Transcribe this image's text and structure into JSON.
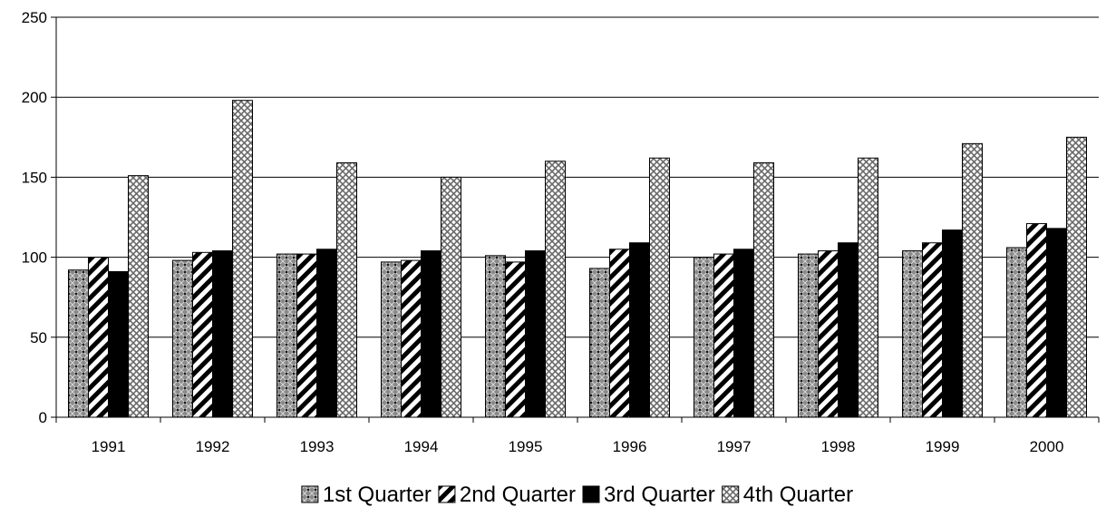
{
  "chart_data": {
    "type": "bar",
    "categories": [
      "1991",
      "1992",
      "1993",
      "1994",
      "1995",
      "1996",
      "1997",
      "1998",
      "1999",
      "2000"
    ],
    "series": [
      {
        "name": "1st Quarter",
        "pattern": "dotted-crosshatch",
        "values": [
          92,
          98,
          102,
          97,
          101,
          93,
          100,
          102,
          104,
          106
        ]
      },
      {
        "name": "2nd Quarter",
        "pattern": "diagonal-stripes",
        "values": [
          100,
          103,
          102,
          98,
          97,
          105,
          102,
          104,
          109,
          121
        ]
      },
      {
        "name": "3rd Quarter",
        "pattern": "solid-black",
        "values": [
          91,
          104,
          105,
          104,
          104,
          109,
          105,
          109,
          117,
          118
        ]
      },
      {
        "name": "4th Quarter",
        "pattern": "crosshatch",
        "values": [
          151,
          198,
          159,
          150,
          160,
          162,
          159,
          162,
          171,
          175
        ]
      }
    ],
    "ylim": [
      0,
      250
    ],
    "yticks": [
      0,
      50,
      100,
      150,
      200,
      250
    ],
    "grid": true,
    "legend_position": "bottom",
    "title": "",
    "xlabel": "",
    "ylabel": "",
    "colors": {
      "bar_stroke": "#000000",
      "grid": "#000000",
      "background": "#ffffff"
    }
  }
}
